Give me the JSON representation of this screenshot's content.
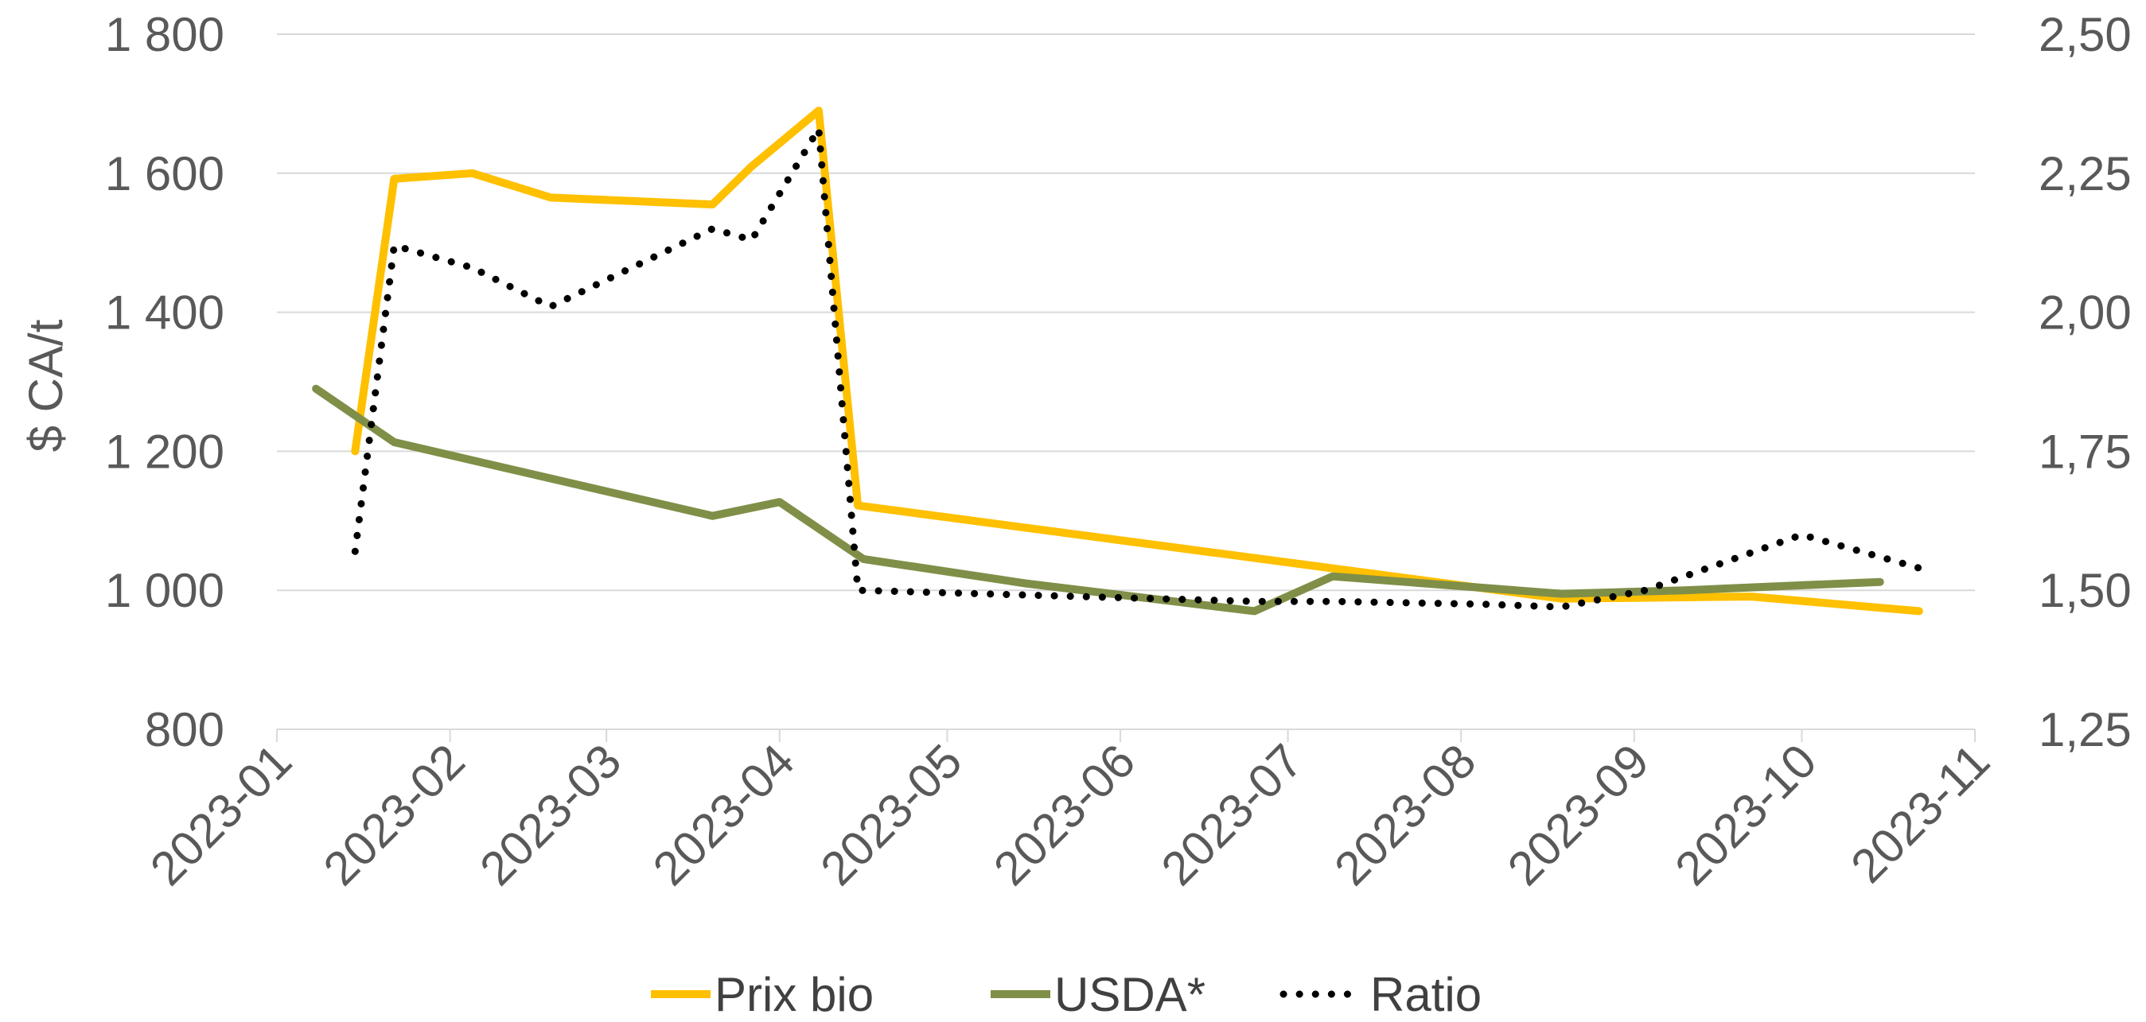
{
  "chart_data": {
    "type": "line",
    "ylabel": "$ CA/t",
    "y_left": {
      "min": 800,
      "max": 1800,
      "step": 200,
      "tick_labels": [
        "800",
        "1 000",
        "1 200",
        "1 400",
        "1 600",
        "1 800"
      ]
    },
    "y_right": {
      "min": 1.25,
      "max": 2.5,
      "step": 0.25,
      "tick_labels": [
        "1,25",
        "1,50",
        "1,75",
        "2,00",
        "2,25",
        "2,50"
      ]
    },
    "x_axis": {
      "type": "date",
      "ticks": [
        "2023-01",
        "2023-02",
        "2023-03",
        "2023-04",
        "2023-05",
        "2023-06",
        "2023-07",
        "2023-08",
        "2023-09",
        "2023-10",
        "2023-11"
      ],
      "tick_labels": [
        "2023-01",
        "2023-02",
        "2023-03",
        "2023-04",
        "2023-05",
        "2023-06",
        "2023-07",
        "2023-08",
        "2023-09",
        "2023-10",
        "2023-11"
      ]
    },
    "grid": true,
    "legend_position": "bottom",
    "series": [
      {
        "name": "Prix bio",
        "axis": "left",
        "color": "#ffc000",
        "style": "solid",
        "points": [
          {
            "x": "2023-01-15",
            "y": 1200
          },
          {
            "x": "2023-01-22",
            "y": 1592
          },
          {
            "x": "2023-02-05",
            "y": 1600
          },
          {
            "x": "2023-02-19",
            "y": 1565
          },
          {
            "x": "2023-03-20",
            "y": 1555
          },
          {
            "x": "2023-03-27",
            "y": 1610
          },
          {
            "x": "2023-04-08",
            "y": 1690
          },
          {
            "x": "2023-04-15",
            "y": 1122
          },
          {
            "x": "2023-08-19",
            "y": 988
          },
          {
            "x": "2023-09-22",
            "y": 991
          },
          {
            "x": "2023-10-22",
            "y": 970
          }
        ]
      },
      {
        "name": "USDA*",
        "axis": "left",
        "color": "#7f8f48",
        "style": "solid",
        "points": [
          {
            "x": "2023-01-08",
            "y": 1290
          },
          {
            "x": "2023-01-22",
            "y": 1213
          },
          {
            "x": "2023-03-20",
            "y": 1107
          },
          {
            "x": "2023-04-01",
            "y": 1127
          },
          {
            "x": "2023-04-16",
            "y": 1045
          },
          {
            "x": "2023-05-15",
            "y": 1010
          },
          {
            "x": "2023-06-25",
            "y": 970
          },
          {
            "x": "2023-07-09",
            "y": 1020
          },
          {
            "x": "2023-08-19",
            "y": 995
          },
          {
            "x": "2023-09-10",
            "y": 1000
          },
          {
            "x": "2023-10-15",
            "y": 1012
          }
        ]
      },
      {
        "name": "Ratio",
        "axis": "right",
        "color": "#000000",
        "style": "dotted",
        "points": [
          {
            "x": "2023-01-15",
            "y": 1.57
          },
          {
            "x": "2023-01-22",
            "y": 2.12
          },
          {
            "x": "2023-02-05",
            "y": 2.08
          },
          {
            "x": "2023-02-19",
            "y": 2.01
          },
          {
            "x": "2023-03-20",
            "y": 2.15
          },
          {
            "x": "2023-03-27",
            "y": 2.13
          },
          {
            "x": "2023-04-08",
            "y": 2.33
          },
          {
            "x": "2023-04-15",
            "y": 1.5
          },
          {
            "x": "2023-06-25",
            "y": 1.48
          },
          {
            "x": "2023-07-09",
            "y": 1.48
          },
          {
            "x": "2023-08-05",
            "y": 1.475
          },
          {
            "x": "2023-08-19",
            "y": 1.47
          },
          {
            "x": "2023-09-03",
            "y": 1.5
          },
          {
            "x": "2023-10-01",
            "y": 1.6
          },
          {
            "x": "2023-10-22",
            "y": 1.54
          }
        ]
      }
    ]
  }
}
